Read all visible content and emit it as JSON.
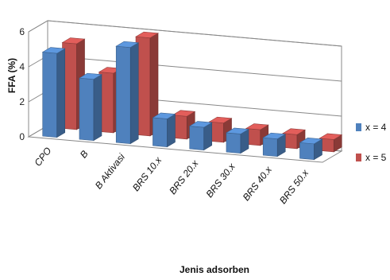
{
  "chart_data": {
    "type": "bar",
    "title": "",
    "xlabel": "Jenis adsorben",
    "ylabel": "FFA (%)",
    "ylim": [
      0,
      6
    ],
    "yticks": [
      "0",
      "2",
      "4",
      "6"
    ],
    "grid": true,
    "legend_position": "right",
    "categories": [
      "CPO",
      "B",
      "B Aktivasi",
      "BRS 10.x",
      "BRS 20.x",
      "BRS 30.x",
      "BRS 40.x",
      "BRS 50.x"
    ],
    "series": [
      {
        "name": "x = 4",
        "color": "#4f81bd",
        "values": [
          4.8,
          3.5,
          5.5,
          1.6,
          1.3,
          1.1,
          1.0,
          0.9
        ]
      },
      {
        "name": "x = 5",
        "color": "#c0504d",
        "values": [
          4.9,
          3.4,
          5.6,
          1.3,
          1.1,
          0.9,
          0.8,
          0.7
        ]
      }
    ]
  }
}
